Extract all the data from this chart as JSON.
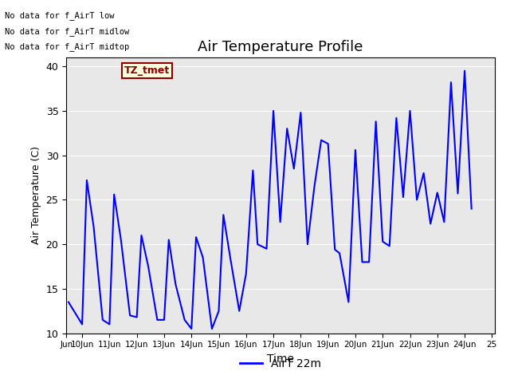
{
  "title": "Air Temperature Profile",
  "xlabel": "Time",
  "ylabel": "Air Temperature (C)",
  "legend_label": "AirT 22m",
  "ylim": [
    10,
    41
  ],
  "yticks": [
    10,
    15,
    20,
    25,
    30,
    35,
    40
  ],
  "background_color": "#e8e8e8",
  "line_color": "blue",
  "annotations": [
    "No data for f_AirT low",
    "No data for f_AirT midlow",
    "No data for f_AirT midtop"
  ],
  "tz_label": "TZ_tmet",
  "xlim": [
    9.42,
    25.1
  ],
  "x_days": [
    9.5,
    10.0,
    10.17,
    10.42,
    10.75,
    11.0,
    11.17,
    11.42,
    11.75,
    12.0,
    12.17,
    12.42,
    12.75,
    13.0,
    13.17,
    13.42,
    13.75,
    14.0,
    14.17,
    14.42,
    14.75,
    15.0,
    15.17,
    15.42,
    15.75,
    16.0,
    16.25,
    16.42,
    16.75,
    17.0,
    17.25,
    17.5,
    17.75,
    18.0,
    18.25,
    18.5,
    18.75,
    19.0,
    19.25,
    19.42,
    19.75,
    20.0,
    20.25,
    20.5,
    20.75,
    21.0,
    21.25,
    21.5,
    21.75,
    22.0,
    22.25,
    22.5,
    22.75,
    23.0,
    23.25,
    23.5,
    23.75,
    24.0,
    24.25
  ],
  "y_temps": [
    13.5,
    11.0,
    27.2,
    22.0,
    11.5,
    11.0,
    25.6,
    20.5,
    12.0,
    11.8,
    21.0,
    17.5,
    11.5,
    11.5,
    20.5,
    15.5,
    11.5,
    10.5,
    20.8,
    18.5,
    10.5,
    12.5,
    23.3,
    18.5,
    12.5,
    16.7,
    28.3,
    20.0,
    19.5,
    35.0,
    22.5,
    33.0,
    28.5,
    34.8,
    20.0,
    26.5,
    31.7,
    31.3,
    19.4,
    19.0,
    13.5,
    30.6,
    18.0,
    18.0,
    33.8,
    20.3,
    19.8,
    34.2,
    25.3,
    35.0,
    25.0,
    28.0,
    22.3,
    25.8,
    22.5,
    38.2,
    25.7,
    39.5,
    24.0
  ],
  "xtick_positions": [
    9.42,
    10,
    11,
    12,
    13,
    14,
    15,
    16,
    17,
    18,
    19,
    20,
    21,
    22,
    23,
    24,
    25
  ],
  "xtick_labels": [
    "Jun",
    "10Jun",
    "11Jun",
    "12Jun",
    "13Jun",
    "14Jun",
    "15Jun",
    "16Jun",
    "17Jun",
    "18Jun",
    "19Jun",
    "20Jun",
    "21Jun",
    "22Jun",
    "23Jun",
    "24Jun",
    "25"
  ]
}
